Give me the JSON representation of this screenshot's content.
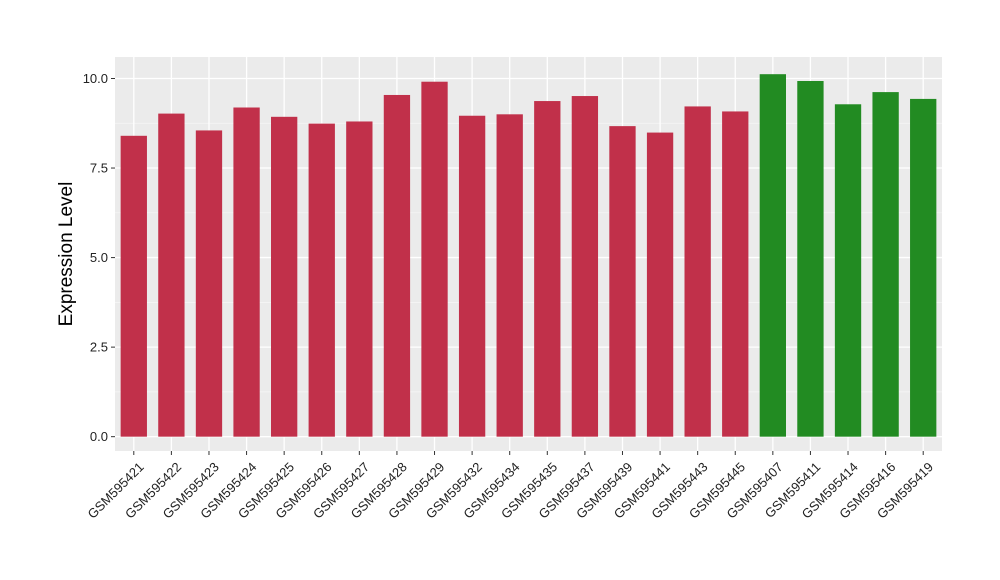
{
  "chart_data": {
    "type": "bar",
    "title": "",
    "xlabel": "",
    "ylabel": "Expression Level",
    "ylim": [
      -0.4,
      10.6
    ],
    "yticks": [
      0.0,
      2.5,
      5.0,
      7.5,
      10.0
    ],
    "ytick_labels": [
      "0.0",
      "2.5",
      "5.0",
      "7.5",
      "10.0"
    ],
    "grid": true,
    "legend": "none",
    "categories": [
      "GSM595421",
      "GSM595422",
      "GSM595423",
      "GSM595424",
      "GSM595425",
      "GSM595426",
      "GSM595427",
      "GSM595428",
      "GSM595429",
      "GSM595432",
      "GSM595434",
      "GSM595435",
      "GSM595437",
      "GSM595439",
      "GSM595441",
      "GSM595443",
      "GSM595445",
      "GSM595407",
      "GSM595411",
      "GSM595414",
      "GSM595416",
      "GSM595419"
    ],
    "values": [
      8.4,
      9.02,
      8.55,
      9.19,
      8.93,
      8.74,
      8.8,
      9.54,
      9.91,
      8.96,
      9.0,
      9.37,
      9.51,
      8.67,
      8.49,
      9.22,
      9.08,
      10.12,
      9.93,
      9.28,
      9.62,
      9.43
    ],
    "bar_colors": [
      "#c1304a",
      "#c1304a",
      "#c1304a",
      "#c1304a",
      "#c1304a",
      "#c1304a",
      "#c1304a",
      "#c1304a",
      "#c1304a",
      "#c1304a",
      "#c1304a",
      "#c1304a",
      "#c1304a",
      "#c1304a",
      "#c1304a",
      "#c1304a",
      "#c1304a",
      "#228b22",
      "#228b22",
      "#228b22",
      "#228b22",
      "#228b22"
    ]
  }
}
